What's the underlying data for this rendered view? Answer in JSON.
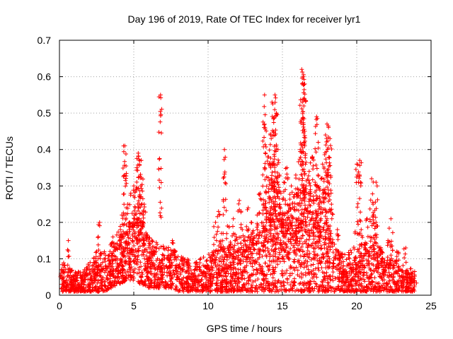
{
  "chart_data": {
    "type": "scatter",
    "title": "Day 196 of 2019, Rate Of TEC Index for receiver lyr1",
    "xlabel": "GPS time / hours",
    "ylabel": "ROTI / TECUs",
    "xlim": [
      0,
      25
    ],
    "ylim": [
      0,
      0.7
    ],
    "xticks": [
      0,
      5,
      10,
      15,
      20,
      25
    ],
    "yticks": [
      0,
      0.1,
      0.2,
      0.3,
      0.4,
      0.5,
      0.6,
      0.7
    ],
    "xtick_labels": [
      "0",
      "5",
      "10",
      "15",
      "20",
      "25"
    ],
    "ytick_labels": [
      "0",
      "0.1",
      "0.2",
      "0.3",
      "0.4",
      "0.5",
      "0.6",
      "0.7"
    ],
    "grid": true,
    "marker": "+",
    "color": "#ff0000",
    "series": [
      {
        "name": "ROTI",
        "x": [
          0.1,
          0.3,
          0.6,
          0.7,
          0.8,
          1.0,
          1.2,
          1.5,
          1.8,
          2.0,
          2.3,
          2.5,
          2.6,
          2.7,
          2.9,
          3.1,
          3.3,
          3.4,
          3.6,
          3.8,
          3.9,
          4.1,
          4.2,
          4.3,
          4.4,
          4.5,
          4.6,
          4.7,
          4.8,
          4.9,
          5.0,
          5.1,
          5.2,
          5.3,
          5.4,
          5.5,
          5.6,
          5.7,
          5.8,
          5.9,
          6.0,
          6.1,
          6.2,
          6.4,
          6.6,
          6.8,
          7.0,
          7.2,
          7.4,
          7.6,
          7.8,
          8.0,
          8.3,
          8.6,
          8.9,
          9.2,
          9.5,
          9.8,
          10.0,
          10.2,
          10.3,
          10.5,
          10.7,
          10.9,
          11.1,
          11.3,
          11.5,
          11.7,
          11.9,
          12.1,
          12.3,
          12.5,
          12.7,
          12.9,
          13.1,
          13.3,
          13.5,
          13.7,
          13.8,
          13.9,
          14.0,
          14.1,
          14.2,
          14.3,
          14.4,
          14.5,
          14.6,
          14.7,
          14.8,
          14.9,
          15.0,
          15.1,
          15.2,
          15.3,
          15.4,
          15.5,
          15.6,
          15.7,
          15.8,
          15.9,
          16.0,
          16.1,
          16.2,
          16.3,
          16.4,
          16.5,
          16.6,
          16.7,
          16.8,
          16.9,
          17.0,
          17.1,
          17.2,
          17.3,
          17.4,
          17.5,
          17.6,
          17.7,
          17.8,
          17.9,
          18.0,
          18.1,
          18.2,
          18.3,
          18.5,
          18.7,
          18.9,
          19.1,
          19.3,
          19.5,
          19.7,
          19.9,
          20.1,
          20.3,
          20.5,
          20.7,
          20.9,
          21.1,
          21.3,
          21.5,
          21.7,
          21.9,
          22.1,
          22.3,
          22.5,
          22.7,
          22.9,
          23.1,
          23.3,
          23.5,
          23.7,
          23.9,
          4.4,
          5.3,
          5.5,
          6.8,
          11.1,
          13.8,
          14.3,
          14.5,
          14.6,
          16.3,
          16.4,
          16.5,
          17.3,
          18.0,
          18.2,
          20.0,
          20.2,
          21.0,
          21.3,
          22.3
        ],
        "y": [
          0.06,
          0.05,
          0.15,
          0.07,
          0.05,
          0.04,
          0.04,
          0.05,
          0.06,
          0.08,
          0.09,
          0.12,
          0.1,
          0.2,
          0.09,
          0.11,
          0.08,
          0.12,
          0.16,
          0.14,
          0.1,
          0.18,
          0.22,
          0.13,
          0.33,
          0.17,
          0.25,
          0.2,
          0.28,
          0.15,
          0.3,
          0.24,
          0.35,
          0.19,
          0.27,
          0.37,
          0.2,
          0.25,
          0.16,
          0.12,
          0.1,
          0.14,
          0.09,
          0.12,
          0.1,
          0.08,
          0.11,
          0.13,
          0.09,
          0.15,
          0.12,
          0.08,
          0.07,
          0.05,
          0.06,
          0.09,
          0.1,
          0.08,
          0.06,
          0.07,
          0.1,
          0.2,
          0.23,
          0.17,
          0.12,
          0.19,
          0.14,
          0.21,
          0.16,
          0.26,
          0.18,
          0.14,
          0.24,
          0.2,
          0.16,
          0.22,
          0.28,
          0.19,
          0.35,
          0.24,
          0.38,
          0.27,
          0.44,
          0.31,
          0.36,
          0.25,
          0.29,
          0.4,
          0.33,
          0.28,
          0.22,
          0.31,
          0.26,
          0.35,
          0.19,
          0.24,
          0.3,
          0.21,
          0.27,
          0.33,
          0.25,
          0.29,
          0.4,
          0.22,
          0.36,
          0.45,
          0.3,
          0.24,
          0.34,
          0.28,
          0.38,
          0.26,
          0.31,
          0.22,
          0.33,
          0.27,
          0.24,
          0.36,
          0.29,
          0.44,
          0.21,
          0.33,
          0.19,
          0.25,
          0.14,
          0.18,
          0.11,
          0.08,
          0.06,
          0.1,
          0.07,
          0.09,
          0.12,
          0.18,
          0.14,
          0.21,
          0.16,
          0.25,
          0.2,
          0.13,
          0.1,
          0.07,
          0.15,
          0.11,
          0.08,
          0.12,
          0.07,
          0.05,
          0.13,
          0.06,
          0.05,
          0.04,
          0.41,
          0.39,
          0.37,
          0.55,
          0.4,
          0.55,
          0.53,
          0.55,
          0.5,
          0.62,
          0.6,
          0.58,
          0.49,
          0.47,
          0.43,
          0.36,
          0.37,
          0.32,
          0.31,
          0.21
        ]
      }
    ],
    "background_band": {
      "x": [
        0.1,
        0.5,
        1.0,
        1.5,
        2.0,
        2.5,
        3.0,
        3.5,
        4.0,
        4.5,
        5.0,
        5.5,
        6.0,
        6.5,
        7.0,
        7.5,
        8.0,
        8.5,
        9.0,
        9.5,
        10.0,
        10.5,
        11.0,
        11.5,
        12.0,
        12.5,
        13.0,
        13.5,
        14.0,
        14.5,
        15.0,
        15.5,
        16.0,
        16.5,
        17.0,
        17.5,
        18.0,
        18.5,
        19.0,
        19.5,
        20.0,
        20.5,
        21.0,
        21.5,
        22.0,
        22.5,
        23.0,
        23.5,
        23.9
      ],
      "low": [
        0.01,
        0.01,
        0.01,
        0.01,
        0.01,
        0.01,
        0.01,
        0.02,
        0.03,
        0.04,
        0.04,
        0.03,
        0.02,
        0.02,
        0.02,
        0.02,
        0.01,
        0.01,
        0.01,
        0.01,
        0.01,
        0.01,
        0.01,
        0.01,
        0.01,
        0.01,
        0.01,
        0.01,
        0.01,
        0.01,
        0.01,
        0.01,
        0.01,
        0.01,
        0.01,
        0.01,
        0.01,
        0.01,
        0.01,
        0.01,
        0.01,
        0.01,
        0.01,
        0.01,
        0.01,
        0.01,
        0.01,
        0.01,
        0.01
      ],
      "high": [
        0.09,
        0.07,
        0.06,
        0.06,
        0.08,
        0.1,
        0.11,
        0.13,
        0.16,
        0.18,
        0.2,
        0.19,
        0.15,
        0.13,
        0.12,
        0.12,
        0.1,
        0.09,
        0.08,
        0.09,
        0.1,
        0.11,
        0.12,
        0.13,
        0.14,
        0.15,
        0.16,
        0.17,
        0.19,
        0.2,
        0.2,
        0.19,
        0.2,
        0.21,
        0.2,
        0.18,
        0.16,
        0.12,
        0.1,
        0.11,
        0.12,
        0.13,
        0.14,
        0.12,
        0.1,
        0.09,
        0.08,
        0.07,
        0.06
      ]
    }
  }
}
